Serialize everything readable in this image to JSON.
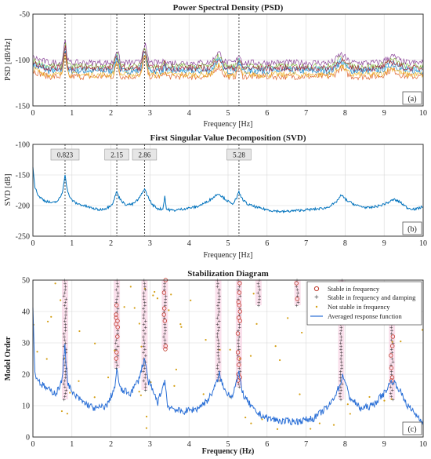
{
  "chart_data": [
    {
      "id": "psd",
      "type": "line",
      "title": "Power Spectral Density (PSD)",
      "xlabel": "Frequency [Hz]",
      "ylabel": "PSD [dB/Hz]",
      "panel_label": "(a)",
      "xlim": [
        0,
        10
      ],
      "ylim": [
        -150,
        -50
      ],
      "xticks": [
        "0",
        "1",
        "2",
        "3",
        "4",
        "5",
        "6",
        "7",
        "8",
        "9",
        "10"
      ],
      "yticks": [
        "-50",
        "-100",
        "-150"
      ],
      "grid": true,
      "peak_lines": [
        0.823,
        2.15,
        2.86,
        5.28
      ],
      "peaks": [
        {
          "f": 0.823,
          "amp": 24,
          "w": 0.05
        },
        {
          "f": 2.15,
          "amp": 14,
          "w": 0.06
        },
        {
          "f": 2.86,
          "amp": 20,
          "w": 0.07
        },
        {
          "f": 3.38,
          "amp": 6,
          "w": 0.03
        },
        {
          "f": 4.75,
          "amp": 11,
          "w": 0.12
        },
        {
          "f": 5.28,
          "amp": 9,
          "w": 0.06
        },
        {
          "f": 7.9,
          "amp": 9,
          "w": 0.15
        },
        {
          "f": 9.2,
          "amp": 7,
          "w": 0.2
        }
      ],
      "series": [
        {
          "color": "#0072BD",
          "base": -112,
          "offset": 0
        },
        {
          "color": "#D95319",
          "base": -118,
          "offset": -6
        },
        {
          "color": "#EDB120",
          "base": -116,
          "offset": -3
        },
        {
          "color": "#7E2F8E",
          "base": -103,
          "offset": 6
        },
        {
          "color": "#77AC30",
          "base": -107,
          "offset": 3
        },
        {
          "color": "#4DBEEE",
          "base": -110,
          "offset": 1
        },
        {
          "color": "#A2142F",
          "base": -109,
          "offset": 2
        }
      ]
    },
    {
      "id": "svd",
      "type": "line",
      "title": "First Singular Value Decomposition (SVD)",
      "xlabel": "Frequency [Hz]",
      "ylabel": "SVD [dB]",
      "panel_label": "(b)",
      "xlim": [
        0,
        10
      ],
      "ylim": [
        -250,
        -100
      ],
      "xticks": [
        "0",
        "1",
        "2",
        "3",
        "4",
        "5",
        "6",
        "7",
        "8",
        "9",
        "10"
      ],
      "yticks": [
        "-100",
        "-150",
        "-200",
        "-250"
      ],
      "grid": true,
      "peak_lines": [
        0.823,
        2.15,
        2.86,
        5.28
      ],
      "annotations": [
        "0.823",
        "2.15",
        "2.86",
        "5.28"
      ],
      "points": [
        [
          0.0,
          -135
        ],
        [
          0.05,
          -170
        ],
        [
          0.15,
          -185
        ],
        [
          0.3,
          -192
        ],
        [
          0.5,
          -196
        ],
        [
          0.65,
          -192
        ],
        [
          0.75,
          -180
        ],
        [
          0.8,
          -160
        ],
        [
          0.823,
          -148
        ],
        [
          0.86,
          -168
        ],
        [
          0.95,
          -188
        ],
        [
          1.1,
          -196
        ],
        [
          1.3,
          -200
        ],
        [
          1.5,
          -204
        ],
        [
          1.7,
          -207
        ],
        [
          1.9,
          -204
        ],
        [
          2.05,
          -196
        ],
        [
          2.12,
          -182
        ],
        [
          2.15,
          -177
        ],
        [
          2.2,
          -186
        ],
        [
          2.35,
          -198
        ],
        [
          2.55,
          -198
        ],
        [
          2.7,
          -190
        ],
        [
          2.8,
          -180
        ],
        [
          2.86,
          -172
        ],
        [
          2.92,
          -182
        ],
        [
          3.05,
          -198
        ],
        [
          3.2,
          -205
        ],
        [
          3.33,
          -206
        ],
        [
          3.38,
          -184
        ],
        [
          3.42,
          -206
        ],
        [
          3.6,
          -208
        ],
        [
          3.8,
          -206
        ],
        [
          4.0,
          -204
        ],
        [
          4.2,
          -202
        ],
        [
          4.4,
          -196
        ],
        [
          4.6,
          -188
        ],
        [
          4.75,
          -180
        ],
        [
          4.9,
          -188
        ],
        [
          5.1,
          -198
        ],
        [
          5.22,
          -188
        ],
        [
          5.28,
          -178
        ],
        [
          5.35,
          -188
        ],
        [
          5.5,
          -198
        ],
        [
          5.8,
          -204
        ],
        [
          6.1,
          -208
        ],
        [
          6.4,
          -210
        ],
        [
          6.8,
          -208
        ],
        [
          7.2,
          -206
        ],
        [
          7.5,
          -204
        ],
        [
          7.75,
          -196
        ],
        [
          7.9,
          -183
        ],
        [
          8.05,
          -192
        ],
        [
          8.3,
          -200
        ],
        [
          8.6,
          -204
        ],
        [
          8.9,
          -200
        ],
        [
          9.1,
          -195
        ],
        [
          9.25,
          -190
        ],
        [
          9.4,
          -194
        ],
        [
          9.6,
          -204
        ],
        [
          9.8,
          -206
        ],
        [
          10.0,
          -202
        ]
      ]
    },
    {
      "id": "stab",
      "type": "scatter",
      "title": "Stabilization Diagram",
      "xlabel": "Frequency (Hz)",
      "ylabel": "Model Order",
      "panel_label": "(c)",
      "xlim": [
        0,
        10
      ],
      "ylim": [
        0,
        50
      ],
      "xticks": [
        "0",
        "1",
        "2",
        "3",
        "4",
        "5",
        "6",
        "7",
        "8",
        "9",
        "10"
      ],
      "yticks": [
        "0",
        "10",
        "20",
        "30",
        "40",
        "50"
      ],
      "grid": true,
      "legend_position": "top-right",
      "legend": [
        "Stable in frequency",
        "Stable in frequency and damping",
        "Not stable in frequency",
        "Averaged response function"
      ],
      "columns": [
        {
          "f": 0.823,
          "lo": 12,
          "hi": 50
        },
        {
          "f": 2.15,
          "lo": 22,
          "hi": 50
        },
        {
          "f": 2.86,
          "lo": 15,
          "hi": 50
        },
        {
          "f": 3.38,
          "lo": 28,
          "hi": 50
        },
        {
          "f": 4.75,
          "lo": 18,
          "hi": 50
        },
        {
          "f": 5.28,
          "lo": 16,
          "hi": 50
        },
        {
          "f": 5.78,
          "lo": 42,
          "hi": 50
        },
        {
          "f": 6.78,
          "lo": 42,
          "hi": 50
        },
        {
          "f": 7.9,
          "lo": 12,
          "hi": 50
        },
        {
          "f": 9.2,
          "lo": 12,
          "hi": 44
        }
      ],
      "scatter_noise": 70,
      "response_points": [
        [
          0.0,
          42
        ],
        [
          0.05,
          20
        ],
        [
          0.2,
          17
        ],
        [
          0.4,
          15
        ],
        [
          0.6,
          14
        ],
        [
          0.75,
          18
        ],
        [
          0.82,
          30
        ],
        [
          0.88,
          18
        ],
        [
          1.0,
          14
        ],
        [
          1.3,
          11
        ],
        [
          1.6,
          9
        ],
        [
          1.9,
          10
        ],
        [
          2.1,
          16
        ],
        [
          2.15,
          21
        ],
        [
          2.25,
          15
        ],
        [
          2.5,
          14
        ],
        [
          2.7,
          18
        ],
        [
          2.86,
          25
        ],
        [
          2.95,
          18
        ],
        [
          3.2,
          11
        ],
        [
          3.38,
          18
        ],
        [
          3.45,
          10
        ],
        [
          3.8,
          8
        ],
        [
          4.2,
          9
        ],
        [
          4.5,
          12
        ],
        [
          4.7,
          17
        ],
        [
          4.78,
          20
        ],
        [
          4.9,
          15
        ],
        [
          5.1,
          13
        ],
        [
          5.28,
          20
        ],
        [
          5.4,
          13
        ],
        [
          5.7,
          8
        ],
        [
          6.0,
          6
        ],
        [
          6.4,
          5
        ],
        [
          6.8,
          5
        ],
        [
          7.2,
          6
        ],
        [
          7.6,
          10
        ],
        [
          7.85,
          16
        ],
        [
          7.95,
          20
        ],
        [
          8.1,
          13
        ],
        [
          8.4,
          9
        ],
        [
          8.7,
          10
        ],
        [
          9.0,
          14
        ],
        [
          9.2,
          18
        ],
        [
          9.35,
          16
        ],
        [
          9.6,
          10
        ],
        [
          9.9,
          6
        ],
        [
          10.0,
          5
        ]
      ]
    }
  ]
}
